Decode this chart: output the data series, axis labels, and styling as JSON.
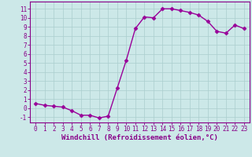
{
  "x": [
    0,
    1,
    2,
    3,
    4,
    5,
    6,
    7,
    8,
    9,
    10,
    11,
    12,
    13,
    14,
    15,
    16,
    17,
    18,
    19,
    20,
    21,
    22,
    23
  ],
  "y": [
    0.5,
    0.3,
    0.2,
    0.1,
    -0.3,
    -0.8,
    -0.8,
    -1.1,
    -0.9,
    2.2,
    5.3,
    8.8,
    10.1,
    10.0,
    11.0,
    11.0,
    10.8,
    10.6,
    10.3,
    9.6,
    8.5,
    8.3,
    9.2,
    8.8
  ],
  "line_color": "#990099",
  "marker": "D",
  "markersize": 2.5,
  "linewidth": 1.0,
  "xlabel": "Windchill (Refroidissement éolien,°C)",
  "xlabel_fontsize": 6.5,
  "bg_color": "#cce8e8",
  "grid_color": "#aacece",
  "tick_color": "#880088",
  "spine_color": "#880088",
  "ylim": [
    -1.6,
    11.8
  ],
  "yticks": [
    -1,
    0,
    1,
    2,
    3,
    4,
    5,
    6,
    7,
    8,
    9,
    10,
    11
  ],
  "xticks": [
    0,
    1,
    2,
    3,
    4,
    5,
    6,
    7,
    8,
    9,
    10,
    11,
    12,
    13,
    14,
    15,
    16,
    17,
    18,
    19,
    20,
    21,
    22,
    23
  ],
  "tick_fontsize": 5.5,
  "xlabel_bold": true
}
